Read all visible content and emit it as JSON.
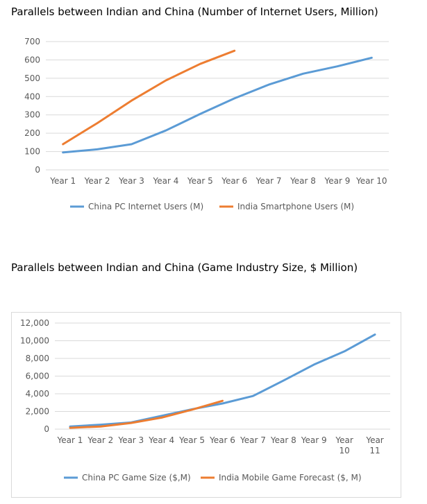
{
  "headings": {
    "chart1": "Parallels between Indian and China (Number of Internet Users, Million)",
    "chart2": "Parallels between Indian and China (Game Industry Size, $ Million)"
  },
  "chart_data": [
    {
      "type": "line",
      "title": "Parallels between Indian and China (Number of Internet Users, Million)",
      "categories": [
        "Year 1",
        "Year 2",
        "Year 3",
        "Year 4",
        "Year 5",
        "Year 6",
        "Year 7",
        "Year 8",
        "Year 9",
        "Year 10"
      ],
      "y_ticks": [
        "0",
        "100",
        "200",
        "300",
        "400",
        "500",
        "600",
        "700"
      ],
      "ylim": [
        0,
        700
      ],
      "grid": true,
      "legend_position": "bottom",
      "series": [
        {
          "name": "China PC Internet Users (M)",
          "color": "#5b9bd5",
          "values": [
            95,
            112,
            140,
            215,
            305,
            390,
            465,
            525,
            565,
            612
          ]
        },
        {
          "name": "India Smartphone Users (M)",
          "color": "#ed7d31",
          "values": [
            140,
            255,
            378,
            488,
            578,
            650,
            null,
            null,
            null,
            null
          ]
        }
      ]
    },
    {
      "type": "line",
      "title": "Parallels between Indian and China (Game Industry Size, $ Million)",
      "categories": [
        [
          "Year 1"
        ],
        [
          "Year 2"
        ],
        [
          "Year 3"
        ],
        [
          "Year 4"
        ],
        [
          "Year 5"
        ],
        [
          "Year 6"
        ],
        [
          "Year 7"
        ],
        [
          "Year 8"
        ],
        [
          "Year 9"
        ],
        [
          "Year",
          "10"
        ],
        [
          "Year",
          "11"
        ]
      ],
      "y_ticks": [
        "0",
        "2,000",
        "4,000",
        "6,000",
        "8,000",
        "10,000",
        "12,000"
      ],
      "ylim": [
        0,
        12000
      ],
      "grid": true,
      "legend_position": "bottom",
      "series": [
        {
          "name": "China PC Game Size  ($,M)",
          "color": "#5b9bd5",
          "values": [
            300,
            500,
            750,
            1500,
            2250,
            2900,
            3750,
            5500,
            7300,
            8800,
            10700
          ]
        },
        {
          "name": "India Mobile Game Forecast ($, M)",
          "color": "#ed7d31",
          "values": [
            150,
            300,
            700,
            1300,
            2200,
            3200,
            null,
            null,
            null,
            null,
            null
          ]
        }
      ]
    }
  ]
}
